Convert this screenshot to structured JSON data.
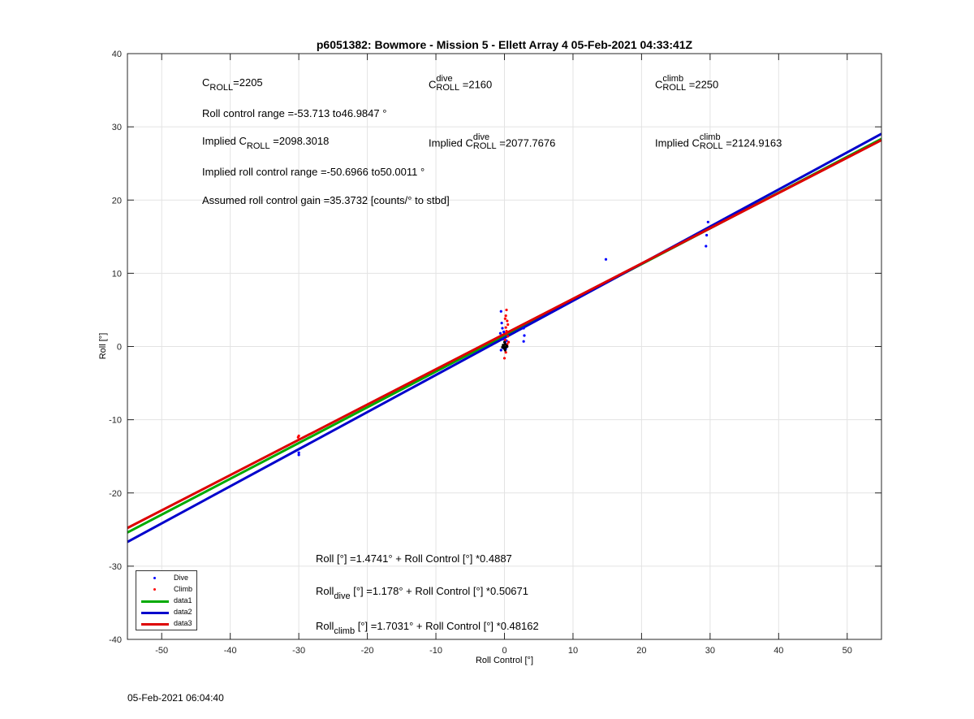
{
  "chart_data": {
    "type": "scatter",
    "title": "p6051382: Bowmore - Mission 5 - Ellett Array 4 05-Feb-2021 04:33:41Z",
    "xlabel": "Roll Control [°]",
    "ylabel": "Roll [°]",
    "xlim": [
      -55,
      55
    ],
    "ylim": [
      -40,
      40
    ],
    "xticks": [
      -50,
      -40,
      -30,
      -20,
      -10,
      0,
      10,
      20,
      30,
      40,
      50
    ],
    "yticks": [
      -40,
      -30,
      -20,
      -10,
      0,
      10,
      20,
      30,
      40
    ],
    "grid": true,
    "legend_position": "bottom-left",
    "series": [
      {
        "name": "Dive",
        "kind": "points",
        "color": "#0000ff",
        "points": [
          [
            -30,
            -14.5
          ],
          [
            -30,
            -14.8
          ],
          [
            -0.5,
            4.8
          ],
          [
            -0.4,
            3.2
          ],
          [
            -0.3,
            2.5
          ],
          [
            -0.6,
            1.8
          ],
          [
            -0.2,
            1.0
          ],
          [
            0.1,
            0.5
          ],
          [
            -0.5,
            -0.5
          ],
          [
            -0.2,
            -0.2
          ],
          [
            0.3,
            0.8
          ],
          [
            -0.1,
            2.0
          ],
          [
            0.2,
            -0.3
          ],
          [
            2.8,
            2.5
          ],
          [
            2.9,
            1.5
          ],
          [
            2.8,
            0.7
          ],
          [
            14.8,
            11.9
          ],
          [
            29.7,
            17.0
          ],
          [
            29.5,
            15.2
          ],
          [
            29.4,
            13.7
          ]
        ]
      },
      {
        "name": "Climb",
        "kind": "points",
        "color": "#ff0000",
        "points": [
          [
            -30,
            -12.2
          ],
          [
            -30.1,
            -12.4
          ],
          [
            0.3,
            5.0
          ],
          [
            0.2,
            4.2
          ],
          [
            0.4,
            3.5
          ],
          [
            0.5,
            3.0
          ],
          [
            0.2,
            2.6
          ],
          [
            0.3,
            2.1
          ],
          [
            0.5,
            1.4
          ],
          [
            0.1,
            0.9
          ],
          [
            0.4,
            0.3
          ],
          [
            0.2,
            -0.8
          ],
          [
            0.0,
            -1.6
          ],
          [
            0.6,
            0.6
          ],
          [
            0.3,
            1.8
          ],
          [
            0.1,
            3.8
          ]
        ]
      },
      {
        "name": "",
        "kind": "points",
        "color": "#000000",
        "points": [
          [
            -0.1,
            0.0
          ],
          [
            0.1,
            0.3
          ],
          [
            0.0,
            -0.3
          ],
          [
            -0.2,
            0.2
          ],
          [
            0.2,
            -0.1
          ],
          [
            0.0,
            0.6
          ],
          [
            0.3,
            0.1
          ],
          [
            -0.3,
            -0.1
          ],
          [
            0.1,
            -0.5
          ],
          [
            0.4,
            0.0
          ]
        ]
      },
      {
        "name": "data1",
        "kind": "line",
        "color": "#00aa00",
        "intercept": 1.4741,
        "slope": 0.4887
      },
      {
        "name": "data2",
        "kind": "line",
        "color": "#0000cc",
        "intercept": 1.178,
        "slope": 0.50671
      },
      {
        "name": "data3",
        "kind": "line",
        "color": "#dd0000",
        "intercept": 1.7031,
        "slope": 0.48162
      }
    ]
  },
  "annotations": {
    "c_roll": {
      "c": "C",
      "sub": "ROLL",
      "value": "=2205"
    },
    "c_roll_dive": {
      "c": "C",
      "sup": "dive",
      "sub": "ROLL",
      "value": " =2160"
    },
    "c_roll_climb": {
      "c": "C",
      "sup": "climb",
      "sub": "ROLL",
      "value": " =2250"
    },
    "roll_control_range": "Roll control range =-53.713 to46.9847 °",
    "implied_c_roll": {
      "prefix": "Implied C",
      "sub": "ROLL",
      "value": " =2098.3018"
    },
    "implied_c_roll_dive": {
      "prefix": "Implied C",
      "sup": "dive",
      "sub": "ROLL",
      "value": " =2077.7676"
    },
    "implied_c_roll_climb": {
      "prefix": "Implied C",
      "sup": "climb",
      "sub": "ROLL",
      "value": " =2124.9163"
    },
    "implied_range": "Implied roll control range =-50.6966 to50.0011 °",
    "gain": "Assumed roll control gain =35.3732 [counts/° to stbd]",
    "eq_all": "Roll [°] =1.4741° + Roll Control [°] *0.4887",
    "eq_dive": {
      "prefix": "Roll",
      "sub": "dive",
      "rest": " [°] =1.178° + Roll Control [°] *0.50671"
    },
    "eq_climb": {
      "prefix": "Roll",
      "sub": "climb",
      "rest": " [°] =1.7031° + Roll Control [°] *0.48162"
    }
  },
  "timestamp": "05-Feb-2021 06:04:40"
}
